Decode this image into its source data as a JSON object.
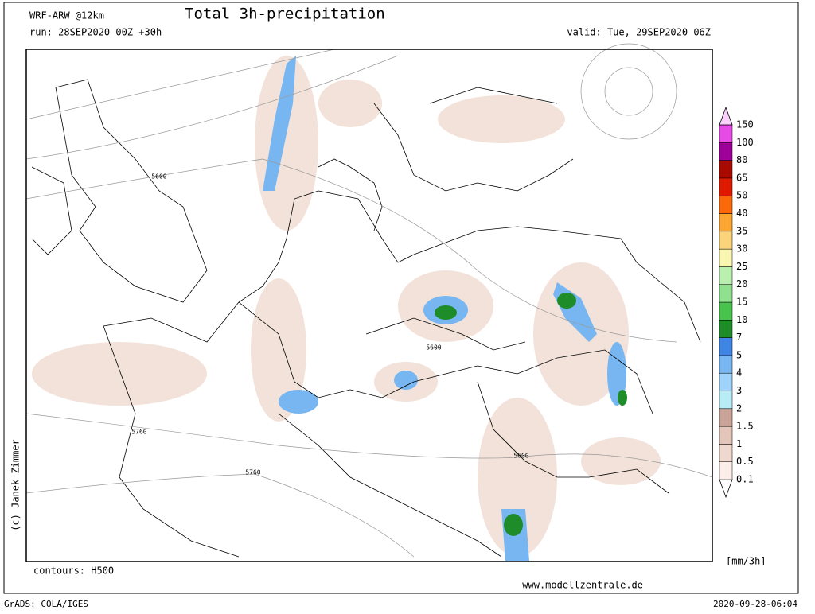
{
  "header": {
    "model": "WRF-ARW @12km",
    "title": "Total 3h-precipitation",
    "run": "run: 28SEP2020 00Z +30h",
    "valid": "valid: Tue, 29SEP2020 06Z"
  },
  "map": {
    "contour_labels": [
      "5600",
      "5600",
      "5600",
      "5760",
      "5760"
    ],
    "contours_note": "contours: H500"
  },
  "legend": {
    "unit": "[mm/3h]",
    "levels": [
      {
        "label": "0.1",
        "color": "#fbeee8"
      },
      {
        "label": "0.5",
        "color": "#efd9cf"
      },
      {
        "label": "1",
        "color": "#e3c5b9"
      },
      {
        "label": "1.5",
        "color": "#c9a398"
      },
      {
        "label": "2",
        "color": "#b8ecf6"
      },
      {
        "label": "3",
        "color": "#9fd3fa"
      },
      {
        "label": "4",
        "color": "#77b6f0"
      },
      {
        "label": "5",
        "color": "#3f86e4"
      },
      {
        "label": "7",
        "color": "#1f8c2a"
      },
      {
        "label": "10",
        "color": "#48c44e"
      },
      {
        "label": "15",
        "color": "#8fe08f"
      },
      {
        "label": "20",
        "color": "#b9f0b0"
      },
      {
        "label": "25",
        "color": "#f8f6b0"
      },
      {
        "label": "30",
        "color": "#fbd37a"
      },
      {
        "label": "35",
        "color": "#fba632"
      },
      {
        "label": "40",
        "color": "#fb6a0a"
      },
      {
        "label": "50",
        "color": "#e01a00"
      },
      {
        "label": "65",
        "color": "#a80a00"
      },
      {
        "label": "80",
        "color": "#a0009a"
      },
      {
        "label": "100",
        "color": "#e64be6"
      },
      {
        "label": "150",
        "color": "#fcd0fc"
      }
    ]
  },
  "footer": {
    "website": "www.modellzentrale.de",
    "software": "GrADS: COLA/IGES",
    "timestamp": "2020-09-28-06:04",
    "copyright": "(c) Janek Zimmer"
  }
}
